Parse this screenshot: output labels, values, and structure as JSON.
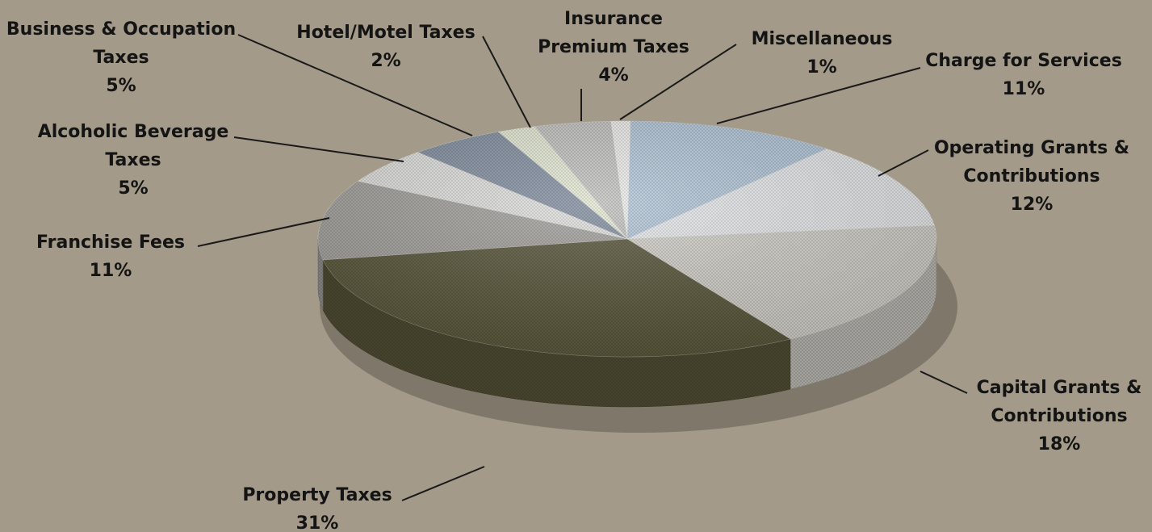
{
  "chart_data": {
    "type": "pie",
    "slices": [
      {
        "label_lines": [
          "Charge for Services"
        ],
        "pct_label": "11%",
        "value": 11,
        "color": "#b9cde0"
      },
      {
        "label_lines": [
          "Operating Grants &",
          "Contributions"
        ],
        "pct_label": "12%",
        "value": 12,
        "color": "#eef0f2"
      },
      {
        "label_lines": [
          "Capital Grants &",
          "Contributions"
        ],
        "pct_label": "18%",
        "value": 18,
        "color": "#d9d7d0"
      },
      {
        "label_lines": [
          "Property Taxes"
        ],
        "pct_label": "31%",
        "value": 31,
        "color": "#5d5a3d"
      },
      {
        "label_lines": [
          "Franchise Fees"
        ],
        "pct_label": "11%",
        "value": 11,
        "color": "#a8a7a3"
      },
      {
        "label_lines": [
          "Alcoholic Beverage",
          "Taxes"
        ],
        "pct_label": "5%",
        "value": 5,
        "color": "#e7e7e5"
      },
      {
        "label_lines": [
          "Business & Occupation",
          "Taxes"
        ],
        "pct_label": "5%",
        "value": 5,
        "color": "#8894a6"
      },
      {
        "label_lines": [
          "Hotel/Motel Taxes"
        ],
        "pct_label": "2%",
        "value": 2,
        "color": "#ecf0da"
      },
      {
        "label_lines": [
          "Insurance",
          "Premium Taxes"
        ],
        "pct_label": "4%",
        "value": 4,
        "color": "#c8c8c6"
      },
      {
        "label_lines": [
          "Miscellaneous"
        ],
        "pct_label": "1%",
        "value": 1,
        "color": "#f4f4f2"
      }
    ]
  }
}
